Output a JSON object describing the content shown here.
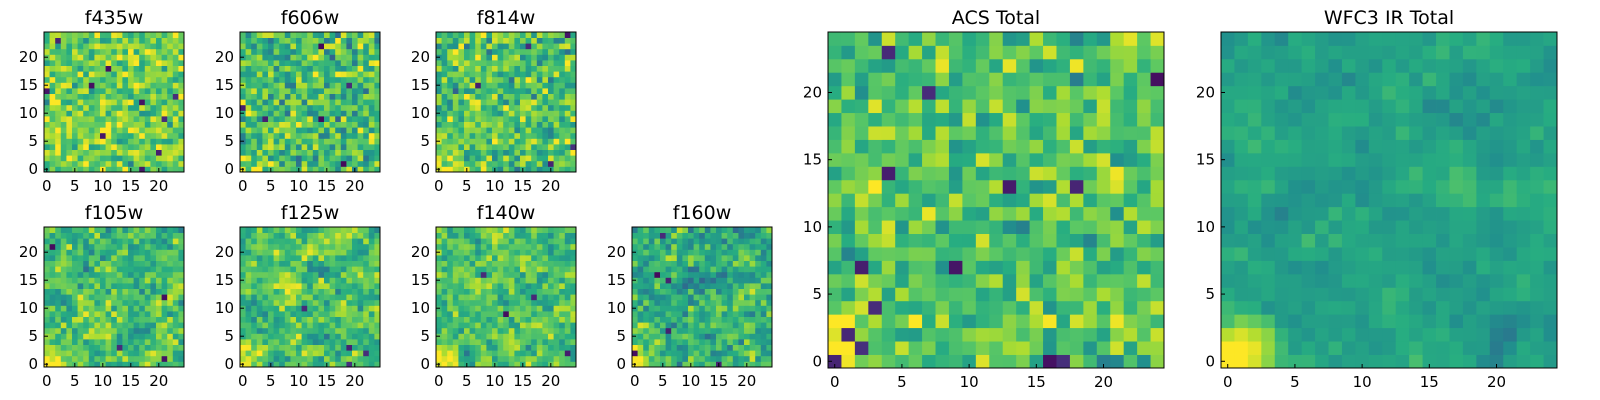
{
  "figure": {
    "description_colormap": "viridis",
    "colors": {
      "low": "#440154",
      "mid": "#21918c",
      "high": "#fde725",
      "frame": "#000000",
      "background": "#ffffff"
    }
  },
  "chart_data": [
    {
      "type": "heatmap",
      "title": "f435w",
      "grid_size": 25,
      "xticks": [
        "0",
        "5",
        "10",
        "15",
        "20"
      ],
      "yticks": [
        "0",
        "5",
        "10",
        "15",
        "20"
      ],
      "xlim": [
        0,
        24
      ],
      "ylim": [
        0,
        24
      ],
      "seed": 11,
      "mean": 0.78,
      "sd": 0.16,
      "smooth": 0,
      "corner": 0,
      "nlow": 10
    },
    {
      "type": "heatmap",
      "title": "f606w",
      "grid_size": 25,
      "xticks": [
        "0",
        "5",
        "10",
        "15",
        "20"
      ],
      "yticks": [
        "0",
        "5",
        "10",
        "15",
        "20"
      ],
      "xlim": [
        0,
        24
      ],
      "ylim": [
        0,
        24
      ],
      "seed": 22,
      "mean": 0.7,
      "sd": 0.18,
      "smooth": 0,
      "corner": 0.5,
      "nlow": 6
    },
    {
      "type": "heatmap",
      "title": "f814w",
      "grid_size": 25,
      "xticks": [
        "0",
        "5",
        "10",
        "15",
        "20"
      ],
      "yticks": [
        "0",
        "5",
        "10",
        "15",
        "20"
      ],
      "xlim": [
        0,
        24
      ],
      "ylim": [
        0,
        24
      ],
      "seed": 33,
      "mean": 0.72,
      "sd": 0.17,
      "smooth": 0,
      "corner": 0.6,
      "nlow": 5
    },
    {
      "type": "heatmap",
      "title": "f105w",
      "grid_size": 25,
      "xticks": [
        "0",
        "5",
        "10",
        "15",
        "20"
      ],
      "yticks": [
        "0",
        "5",
        "10",
        "15",
        "20"
      ],
      "xlim": [
        0,
        24
      ],
      "ylim": [
        0,
        24
      ],
      "seed": 44,
      "mean": 0.7,
      "sd": 0.22,
      "smooth": 1,
      "corner": 0.7,
      "nlow": 4
    },
    {
      "type": "heatmap",
      "title": "f125w",
      "grid_size": 25,
      "xticks": [
        "0",
        "5",
        "10",
        "15",
        "20"
      ],
      "yticks": [
        "0",
        "5",
        "10",
        "15",
        "20"
      ],
      "xlim": [
        0,
        24
      ],
      "ylim": [
        0,
        24
      ],
      "seed": 55,
      "mean": 0.7,
      "sd": 0.22,
      "smooth": 1,
      "corner": 0.7,
      "nlow": 4
    },
    {
      "type": "heatmap",
      "title": "f140w",
      "grid_size": 25,
      "xticks": [
        "0",
        "5",
        "10",
        "15",
        "20"
      ],
      "yticks": [
        "0",
        "5",
        "10",
        "15",
        "20"
      ],
      "xlim": [
        0,
        24
      ],
      "ylim": [
        0,
        24
      ],
      "seed": 66,
      "mean": 0.72,
      "sd": 0.2,
      "smooth": 1,
      "corner": 0.7,
      "nlow": 4
    },
    {
      "type": "heatmap",
      "title": "f160w",
      "grid_size": 25,
      "xticks": [
        "0",
        "5",
        "10",
        "15",
        "20"
      ],
      "yticks": [
        "0",
        "5",
        "10",
        "15",
        "20"
      ],
      "xlim": [
        0,
        24
      ],
      "ylim": [
        0,
        24
      ],
      "seed": 77,
      "mean": 0.62,
      "sd": 0.24,
      "smooth": 1,
      "corner": 0.8,
      "nlow": 6
    },
    {
      "type": "heatmap",
      "title": "ACS Total",
      "grid_size": 25,
      "xticks": [
        "0",
        "5",
        "10",
        "15",
        "20"
      ],
      "yticks": [
        "0",
        "5",
        "10",
        "15",
        "20"
      ],
      "xlim": [
        0,
        24
      ],
      "ylim": [
        0,
        24
      ],
      "seed": 88,
      "mean": 0.72,
      "sd": 0.14,
      "smooth": 0,
      "corner": 0.6,
      "nlow": 14
    },
    {
      "type": "heatmap",
      "title": "WFC3 IR Total",
      "grid_size": 25,
      "xticks": [
        "0",
        "5",
        "10",
        "15",
        "20"
      ],
      "yticks": [
        "0",
        "5",
        "10",
        "15",
        "20"
      ],
      "xlim": [
        0,
        24
      ],
      "ylim": [
        0,
        24
      ],
      "seed": 99,
      "mean": 0.58,
      "sd": 0.14,
      "smooth": 2,
      "corner": 1.0,
      "nlow": 0
    }
  ]
}
